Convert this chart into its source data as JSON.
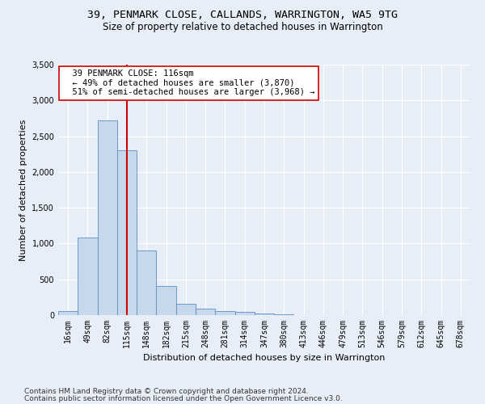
{
  "title_line1": "39, PENMARK CLOSE, CALLANDS, WARRINGTON, WA5 9TG",
  "title_line2": "Size of property relative to detached houses in Warrington",
  "xlabel": "Distribution of detached houses by size in Warrington",
  "ylabel": "Number of detached properties",
  "bar_color": "#c8d8ec",
  "bar_edge_color": "#5b8fc7",
  "vline_color": "#cc0000",
  "vline_x": 3,
  "annotation_text": "  39 PENMARK CLOSE: 116sqm\n  ← 49% of detached houses are smaller (3,870)\n  51% of semi-detached houses are larger (3,968) →",
  "annotation_box_color": "white",
  "annotation_box_edge": "#cc0000",
  "categories": [
    "16sqm",
    "49sqm",
    "82sqm",
    "115sqm",
    "148sqm",
    "182sqm",
    "215sqm",
    "248sqm",
    "281sqm",
    "314sqm",
    "347sqm",
    "380sqm",
    "413sqm",
    "446sqm",
    "479sqm",
    "513sqm",
    "546sqm",
    "579sqm",
    "612sqm",
    "645sqm",
    "678sqm"
  ],
  "values": [
    55,
    1080,
    2720,
    2300,
    900,
    410,
    160,
    90,
    55,
    40,
    25,
    10,
    4,
    2,
    1,
    0,
    0,
    0,
    0,
    0,
    0
  ],
  "ylim": [
    0,
    3500
  ],
  "yticks": [
    0,
    500,
    1000,
    1500,
    2000,
    2500,
    3000,
    3500
  ],
  "footnote1": "Contains HM Land Registry data © Crown copyright and database right 2024.",
  "footnote2": "Contains public sector information licensed under the Open Government Licence v3.0.",
  "bg_color": "#e8eef8",
  "plot_bg_color": "#e8eef8",
  "title_fontsize": 9.5,
  "subtitle_fontsize": 8.5,
  "axis_label_fontsize": 8,
  "tick_fontsize": 7,
  "footnote_fontsize": 6.5
}
